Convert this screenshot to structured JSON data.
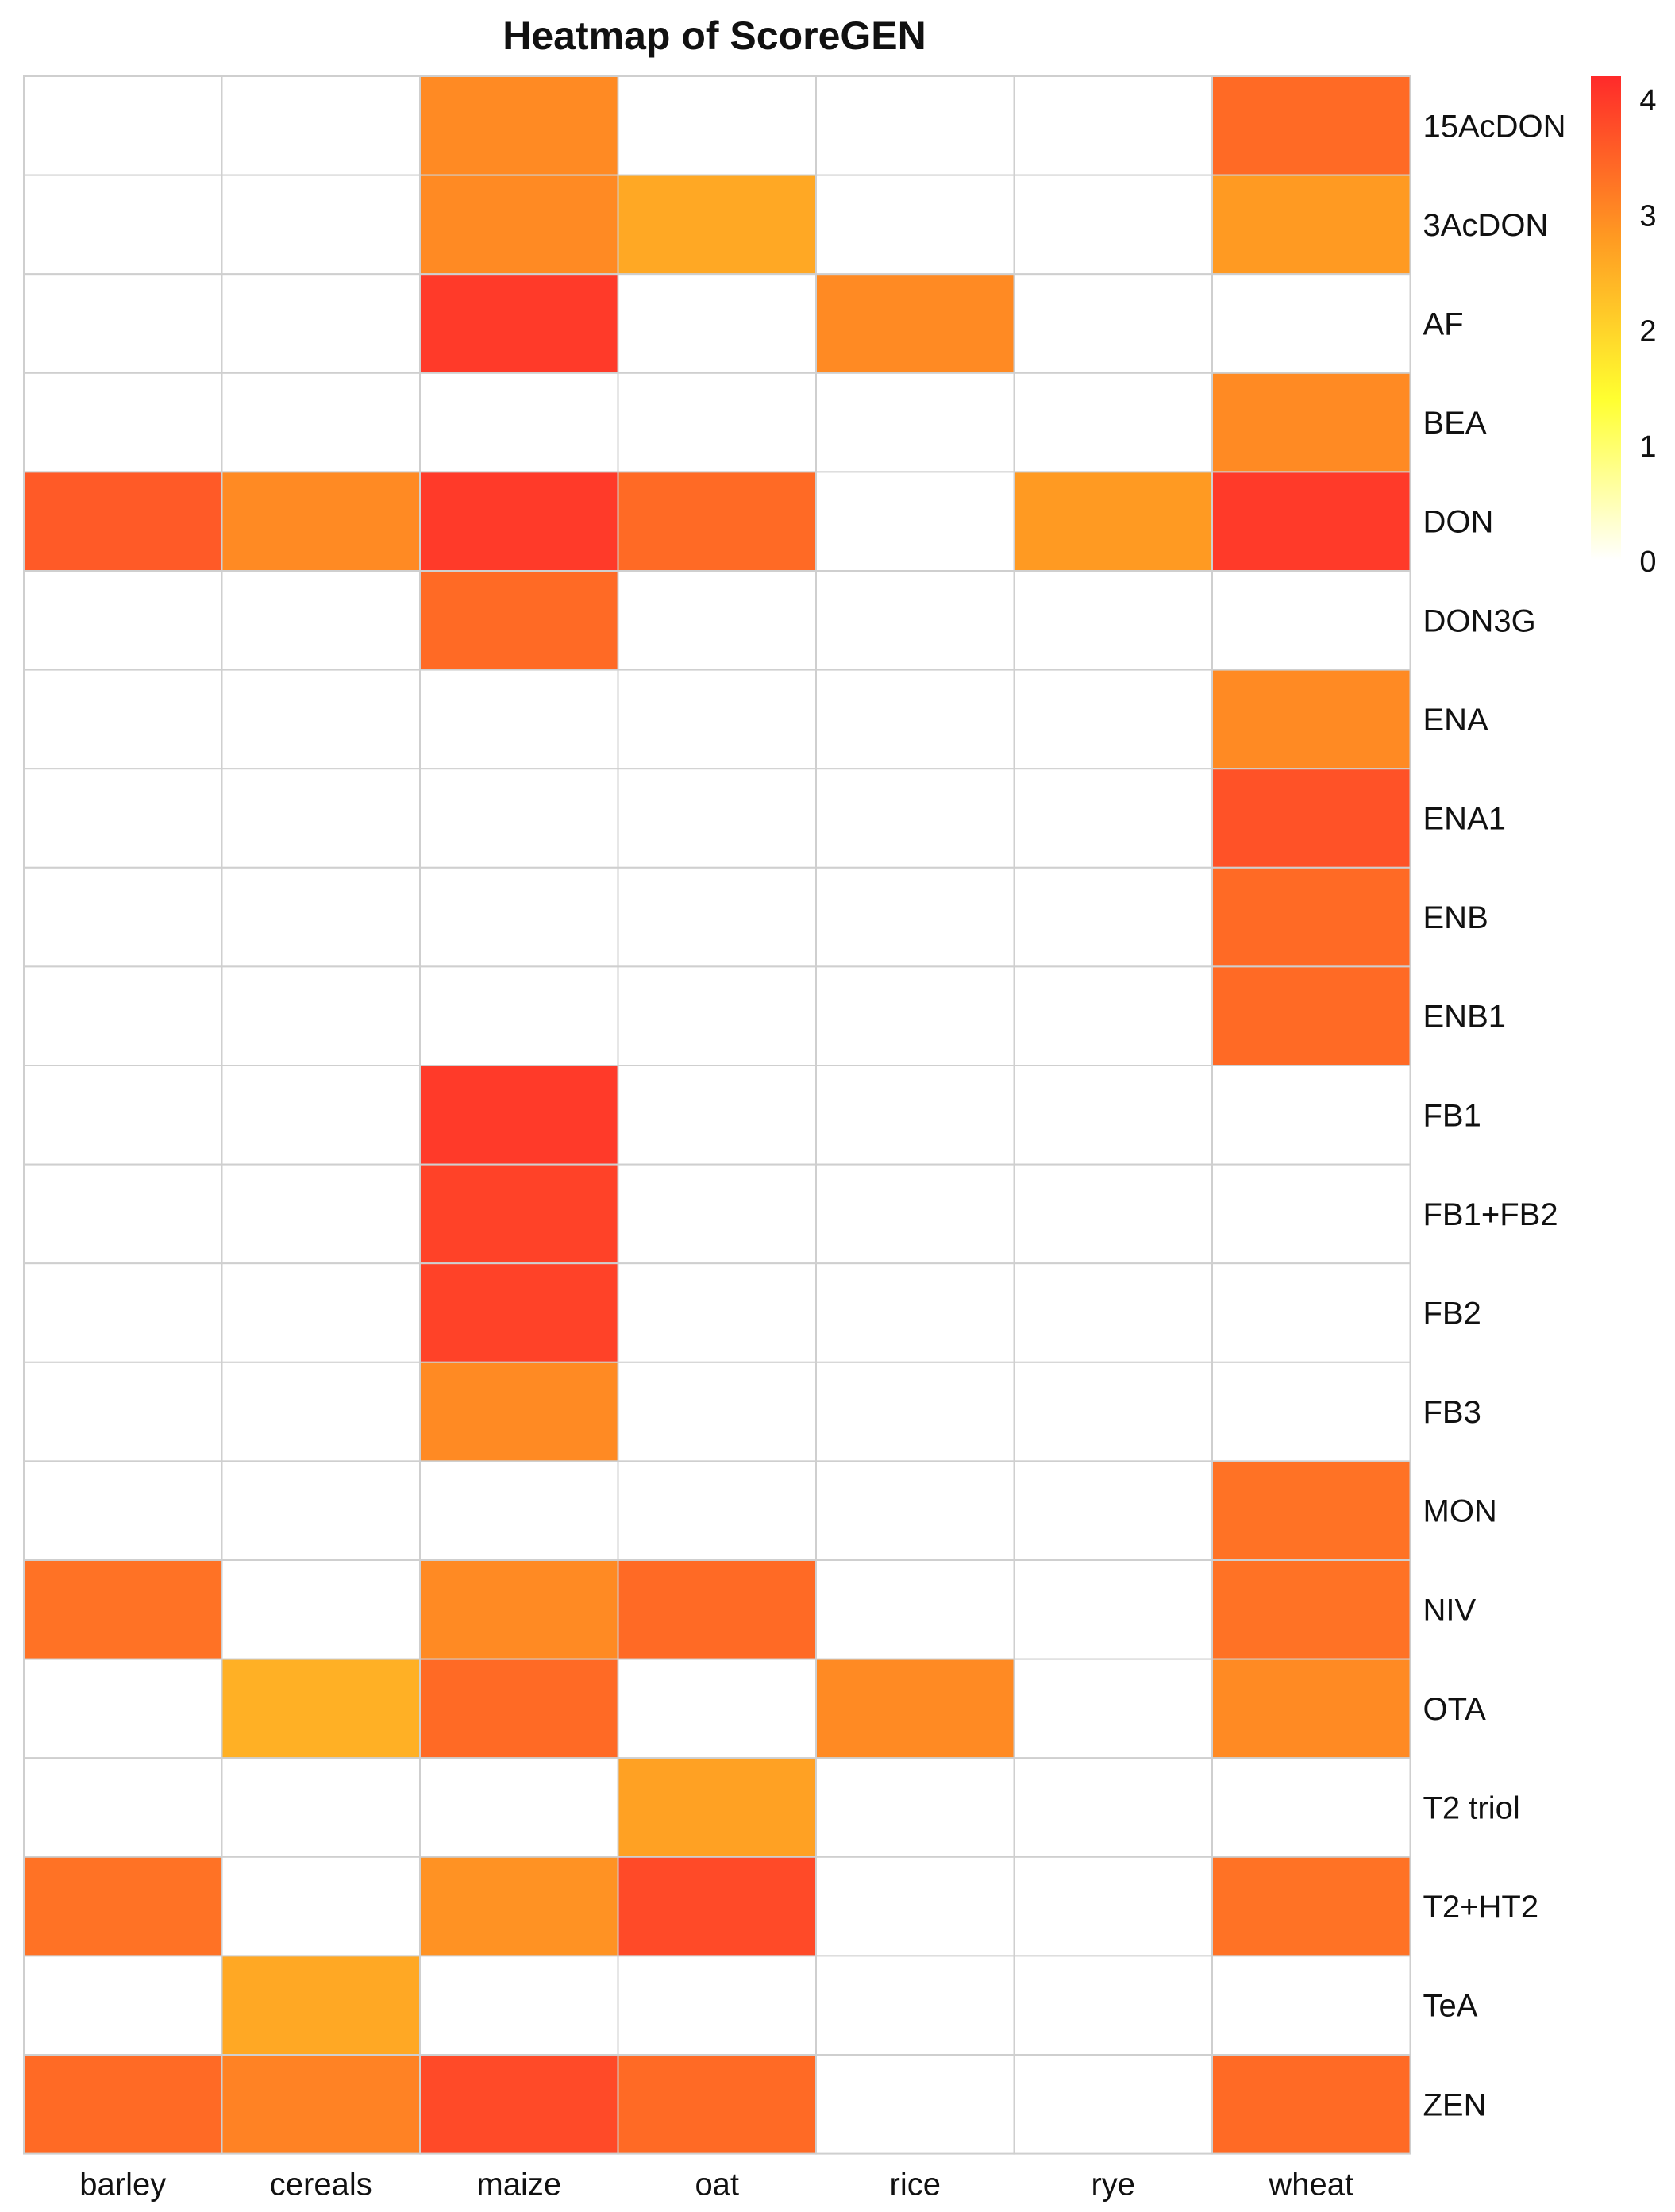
{
  "chart_data": {
    "type": "heatmap",
    "title": "Heatmap of ScoreGEN",
    "xlabel": "",
    "ylabel": "",
    "columns": [
      "barley",
      "cereals",
      "maize",
      "oat",
      "rice",
      "rye",
      "wheat"
    ],
    "rows": [
      "15AcDON",
      "3AcDON",
      "AF",
      "BEA",
      "DON",
      "DON3G",
      "ENA",
      "ENA1",
      "ENB",
      "ENB1",
      "FB1",
      "FB1+FB2",
      "FB2",
      "FB3",
      "MON",
      "NIV",
      "OTA",
      "T2 triol",
      "T2+HT2",
      "TeA",
      "ZEN"
    ],
    "values": [
      [
        0,
        0,
        3.0,
        0,
        0,
        0,
        3.4
      ],
      [
        0,
        0,
        3.0,
        2.6,
        0,
        0,
        2.8
      ],
      [
        0,
        0,
        4.0,
        0,
        3.0,
        0,
        0
      ],
      [
        0,
        0,
        0,
        0,
        0,
        0,
        3.0
      ],
      [
        3.6,
        3.0,
        4.0,
        3.4,
        0,
        2.8,
        4.0
      ],
      [
        0,
        0,
        3.4,
        0,
        0,
        0,
        0
      ],
      [
        0,
        0,
        0,
        0,
        0,
        0,
        3.0
      ],
      [
        0,
        0,
        0,
        0,
        0,
        0,
        3.7
      ],
      [
        0,
        0,
        0,
        0,
        0,
        0,
        3.4
      ],
      [
        0,
        0,
        0,
        0,
        0,
        0,
        3.4
      ],
      [
        0,
        0,
        4.0,
        0,
        0,
        0,
        0
      ],
      [
        0,
        0,
        3.9,
        0,
        0,
        0,
        0
      ],
      [
        0,
        0,
        3.9,
        0,
        0,
        0,
        0
      ],
      [
        0,
        0,
        3.0,
        0,
        0,
        0,
        0
      ],
      [
        0,
        0,
        0,
        0,
        0,
        0,
        3.3
      ],
      [
        3.3,
        0,
        3.0,
        3.4,
        0,
        0,
        3.3
      ],
      [
        0,
        2.5,
        3.4,
        0,
        3.0,
        0,
        3.0
      ],
      [
        0,
        0,
        0,
        2.7,
        0,
        0,
        0
      ],
      [
        3.3,
        0,
        2.9,
        3.8,
        0,
        0,
        3.3
      ],
      [
        0,
        2.6,
        0,
        0,
        0,
        0,
        0
      ],
      [
        3.4,
        3.1,
        3.8,
        3.4,
        0,
        0,
        3.4
      ]
    ],
    "color_range": [
      0,
      4.2
    ],
    "colorscale": [
      "#ffffff",
      "#ffff30",
      "#ff9a22",
      "#ff2a2a"
    ],
    "legend": {
      "position": "top-right",
      "ticks": [
        0,
        1,
        2,
        3,
        4
      ]
    },
    "grid": true
  }
}
